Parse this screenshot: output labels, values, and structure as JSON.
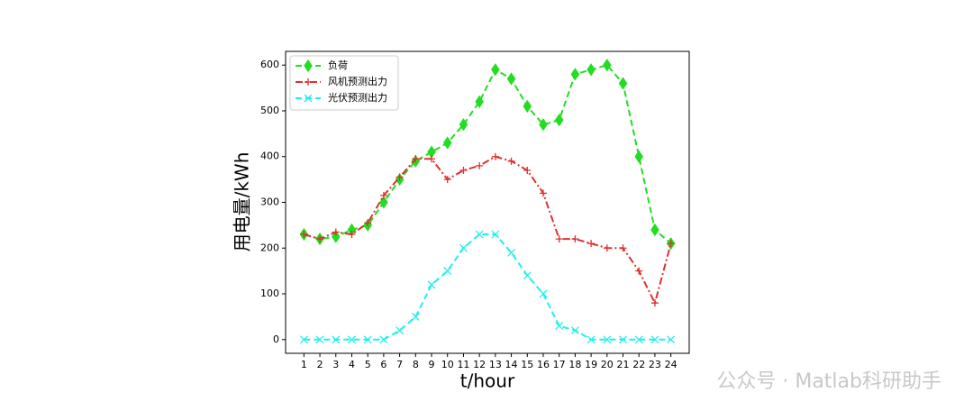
{
  "chart_data": {
    "type": "line",
    "xlabel": "t/hour",
    "ylabel": "用电量/kWh",
    "x": [
      1,
      2,
      3,
      4,
      5,
      6,
      7,
      8,
      9,
      10,
      11,
      12,
      13,
      14,
      15,
      16,
      17,
      18,
      19,
      20,
      21,
      22,
      23,
      24
    ],
    "series": [
      {
        "name": "负荷",
        "color": "#22dd22",
        "marker": "diamond",
        "dash": "dashed",
        "values": [
          230,
          220,
          225,
          240,
          250,
          300,
          350,
          390,
          410,
          430,
          470,
          520,
          590,
          570,
          510,
          470,
          480,
          580,
          590,
          600,
          560,
          400,
          240,
          210
        ]
      },
      {
        "name": "风机预测出力",
        "color": "#e03030",
        "marker": "plus",
        "dash": "dashdot",
        "values": [
          230,
          220,
          235,
          230,
          255,
          315,
          355,
          395,
          395,
          350,
          370,
          380,
          400,
          390,
          370,
          320,
          220,
          220,
          210,
          200,
          200,
          150,
          80,
          210
        ]
      },
      {
        "name": "光伏预测出力",
        "color": "#22eeee",
        "marker": "x",
        "dash": "dashed",
        "values": [
          0,
          0,
          0,
          0,
          0,
          0,
          20,
          50,
          120,
          150,
          200,
          230,
          230,
          190,
          140,
          100,
          30,
          20,
          0,
          0,
          0,
          0,
          0,
          0
        ]
      }
    ],
    "xlim": [
      -0.15,
      25.15
    ],
    "ylim": [
      -30,
      630
    ],
    "xticks": [
      1,
      2,
      3,
      4,
      5,
      6,
      7,
      8,
      9,
      10,
      11,
      12,
      13,
      14,
      15,
      16,
      17,
      18,
      19,
      20,
      21,
      22,
      23,
      24
    ],
    "yticks": [
      0,
      100,
      200,
      300,
      400,
      500,
      600
    ],
    "legend": "upper left"
  },
  "watermark": "公众号 · Matlab科研助手"
}
